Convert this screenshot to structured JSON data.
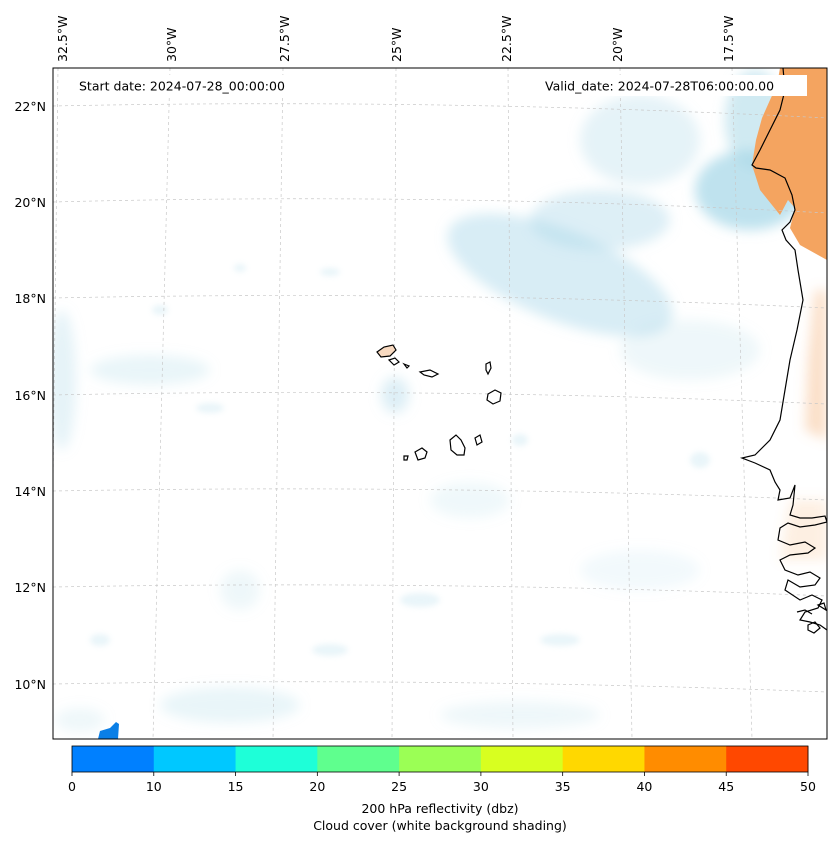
{
  "header": {
    "start_date": "Start date: 2024-07-28_00:00:00",
    "valid_date": "Valid_date: 2024-07-28T06:00:00.00"
  },
  "longitude_labels": [
    "32.5°W",
    "30°W",
    "27.5°W",
    "25°W",
    "22.5°W",
    "20°W",
    "17.5°W"
  ],
  "latitude_labels": [
    "22°N",
    "20°N",
    "18°N",
    "16°N",
    "14°N",
    "12°N",
    "10°N"
  ],
  "colorbar": {
    "ticks": [
      "0",
      "10",
      "15",
      "20",
      "25",
      "30",
      "35",
      "40",
      "45",
      "50"
    ],
    "colors": [
      "#0080ff",
      "#00c8ff",
      "#1effd8",
      "#5fff8e",
      "#9bff55",
      "#d8ff20",
      "#ffd800",
      "#ff8c00",
      "#ff4800"
    ],
    "label_line1": "200 hPa reflectivity (dbz)",
    "label_line2": "Cloud cover (white background shading)"
  },
  "colors": {
    "cloud": "#a9d8e8",
    "land_shading": "#f4a460",
    "coastline": "#000000"
  }
}
